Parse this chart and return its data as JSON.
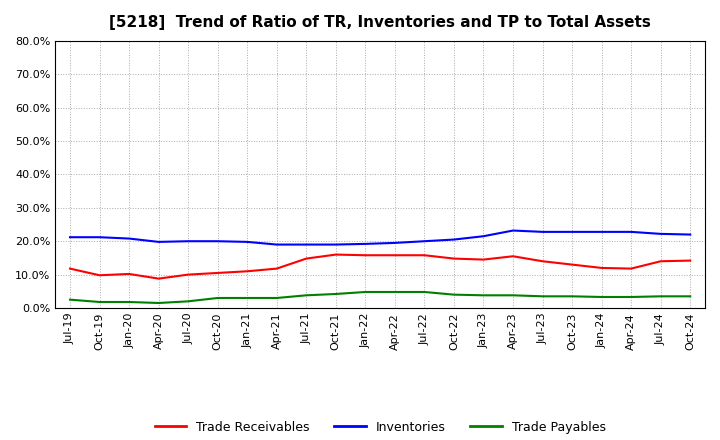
{
  "title": "[5218]  Trend of Ratio of TR, Inventories and TP to Total Assets",
  "x_labels": [
    "Jul-19",
    "Oct-19",
    "Jan-20",
    "Apr-20",
    "Jul-20",
    "Oct-20",
    "Jan-21",
    "Apr-21",
    "Jul-21",
    "Oct-21",
    "Jan-22",
    "Apr-22",
    "Jul-22",
    "Oct-22",
    "Jan-23",
    "Apr-23",
    "Jul-23",
    "Oct-23",
    "Jan-24",
    "Apr-24",
    "Jul-24",
    "Oct-24"
  ],
  "trade_receivables": [
    0.118,
    0.098,
    0.102,
    0.088,
    0.1,
    0.105,
    0.11,
    0.118,
    0.148,
    0.16,
    0.158,
    0.158,
    0.158,
    0.148,
    0.145,
    0.155,
    0.14,
    0.13,
    0.12,
    0.118,
    0.14,
    0.142
  ],
  "inventories": [
    0.212,
    0.212,
    0.208,
    0.198,
    0.2,
    0.2,
    0.198,
    0.19,
    0.19,
    0.19,
    0.192,
    0.195,
    0.2,
    0.205,
    0.215,
    0.232,
    0.228,
    0.228,
    0.228,
    0.228,
    0.222,
    0.22
  ],
  "trade_payables": [
    0.025,
    0.018,
    0.018,
    0.015,
    0.02,
    0.03,
    0.03,
    0.03,
    0.038,
    0.042,
    0.048,
    0.048,
    0.048,
    0.04,
    0.038,
    0.038,
    0.035,
    0.035,
    0.033,
    0.033,
    0.035,
    0.035
  ],
  "tr_color": "#FF0000",
  "inv_color": "#0000FF",
  "tp_color": "#008000",
  "ylim": [
    0,
    0.8
  ],
  "yticks": [
    0.0,
    0.1,
    0.2,
    0.3,
    0.4,
    0.5,
    0.6,
    0.7,
    0.8
  ],
  "legend_labels": [
    "Trade Receivables",
    "Inventories",
    "Trade Payables"
  ],
  "background_color": "#FFFFFF",
  "grid_color": "#AAAAAA"
}
